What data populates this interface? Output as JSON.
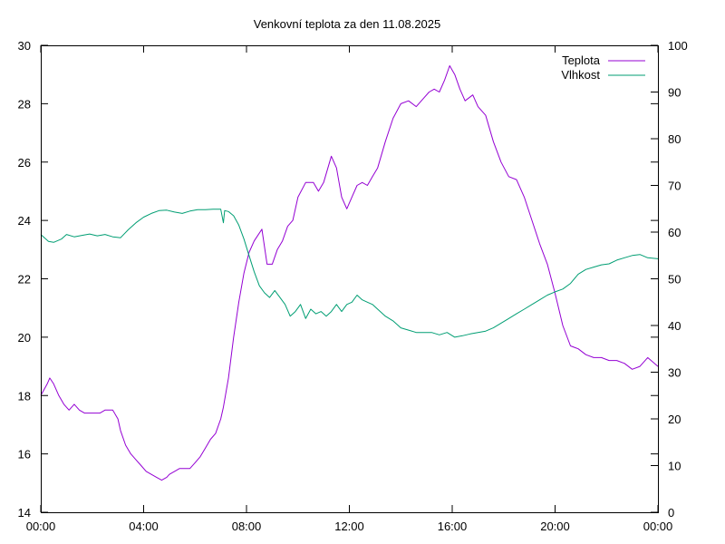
{
  "chart_data": {
    "type": "line",
    "title": "Venkovní teplota za den 11.08.2025",
    "xlabel": "",
    "ylabel": "",
    "y2label": "",
    "x_ticks": [
      "00:00",
      "04:00",
      "08:00",
      "12:00",
      "16:00",
      "20:00",
      "00:00"
    ],
    "xlim_hours": [
      0,
      24
    ],
    "ylim": [
      14,
      30
    ],
    "y_ticks": [
      14,
      16,
      18,
      20,
      22,
      24,
      26,
      28,
      30
    ],
    "y2lim": [
      0,
      100
    ],
    "y2_ticks": [
      0,
      10,
      20,
      30,
      40,
      50,
      60,
      70,
      80,
      90,
      100
    ],
    "grid": false,
    "legend_position": "top-right",
    "series": [
      {
        "name": "Teplota",
        "axis": "y",
        "color": "#9400d3",
        "x": [
          0.0,
          0.25,
          0.35,
          0.5,
          0.7,
          0.9,
          1.1,
          1.3,
          1.5,
          1.7,
          1.9,
          2.1,
          2.3,
          2.5,
          2.8,
          3.0,
          3.1,
          3.3,
          3.5,
          3.7,
          3.9,
          4.1,
          4.3,
          4.5,
          4.7,
          4.9,
          5.0,
          5.2,
          5.4,
          5.6,
          5.8,
          6.0,
          6.2,
          6.4,
          6.6,
          6.8,
          7.0,
          7.1,
          7.3,
          7.5,
          7.7,
          7.9,
          8.1,
          8.3,
          8.6,
          8.8,
          9.0,
          9.2,
          9.4,
          9.6,
          9.8,
          10.0,
          10.3,
          10.6,
          10.8,
          11.0,
          11.3,
          11.5,
          11.7,
          11.9,
          12.1,
          12.3,
          12.5,
          12.7,
          12.9,
          13.1,
          13.4,
          13.7,
          14.0,
          14.3,
          14.6,
          14.9,
          15.1,
          15.3,
          15.5,
          15.7,
          15.9,
          16.1,
          16.3,
          16.5,
          16.8,
          17.0,
          17.3,
          17.6,
          17.9,
          18.2,
          18.5,
          18.8,
          19.1,
          19.4,
          19.7,
          20.0,
          20.3,
          20.6,
          20.9,
          21.2,
          21.5,
          21.8,
          22.1,
          22.4,
          22.7,
          23.0,
          23.3,
          23.6,
          24.0
        ],
        "values": [
          18.0,
          18.4,
          18.6,
          18.4,
          18.0,
          17.7,
          17.5,
          17.7,
          17.5,
          17.4,
          17.4,
          17.4,
          17.4,
          17.5,
          17.5,
          17.2,
          16.8,
          16.3,
          16.0,
          15.8,
          15.6,
          15.4,
          15.3,
          15.2,
          15.1,
          15.2,
          15.3,
          15.4,
          15.5,
          15.5,
          15.5,
          15.7,
          15.9,
          16.2,
          16.5,
          16.7,
          17.2,
          17.6,
          18.6,
          20.0,
          21.2,
          22.2,
          22.9,
          23.3,
          23.7,
          22.5,
          22.5,
          23.0,
          23.3,
          23.8,
          24.0,
          24.8,
          25.3,
          25.3,
          25.0,
          25.3,
          26.2,
          25.8,
          24.8,
          24.4,
          24.8,
          25.2,
          25.3,
          25.2,
          25.5,
          25.8,
          26.7,
          27.5,
          28.0,
          28.1,
          27.9,
          28.2,
          28.4,
          28.5,
          28.4,
          28.8,
          29.3,
          29.0,
          28.5,
          28.1,
          28.3,
          27.9,
          27.6,
          26.7,
          26.0,
          25.5,
          25.4,
          24.8,
          24.0,
          23.2,
          22.5,
          21.5,
          20.4,
          19.7,
          19.6,
          19.4,
          19.3,
          19.3,
          19.2,
          19.2,
          19.1,
          18.9,
          19.0,
          19.3,
          19.0
        ],
        "values_scale_note": ""
      },
      {
        "name": "Vlhkost",
        "axis": "y2",
        "color": "#009e73",
        "x": [
          0.0,
          0.3,
          0.5,
          0.8,
          1.0,
          1.3,
          1.6,
          1.9,
          2.2,
          2.5,
          2.8,
          3.1,
          3.4,
          3.7,
          4.0,
          4.3,
          4.6,
          4.9,
          5.2,
          5.5,
          5.8,
          6.1,
          6.4,
          6.7,
          7.0,
          7.1,
          7.15,
          7.3,
          7.5,
          7.7,
          7.9,
          8.1,
          8.3,
          8.5,
          8.7,
          8.9,
          9.1,
          9.3,
          9.5,
          9.7,
          9.9,
          10.1,
          10.3,
          10.5,
          10.7,
          10.9,
          11.1,
          11.3,
          11.5,
          11.7,
          11.9,
          12.1,
          12.3,
          12.5,
          12.7,
          12.9,
          13.1,
          13.4,
          13.7,
          14.0,
          14.3,
          14.6,
          14.9,
          15.2,
          15.5,
          15.8,
          16.1,
          16.4,
          16.7,
          17.0,
          17.3,
          17.6,
          17.9,
          18.2,
          18.5,
          18.8,
          19.1,
          19.4,
          19.7,
          20.0,
          20.3,
          20.6,
          20.9,
          21.2,
          21.5,
          21.8,
          22.1,
          22.4,
          22.7,
          23.0,
          23.3,
          23.6,
          24.0
        ],
        "values": [
          59.5,
          58.0,
          57.8,
          58.5,
          59.5,
          59.0,
          59.3,
          59.6,
          59.2,
          59.5,
          59.0,
          58.8,
          60.5,
          62.0,
          63.2,
          64.0,
          64.6,
          64.7,
          64.3,
          64.0,
          64.5,
          64.8,
          64.8,
          64.9,
          64.9,
          62.0,
          64.6,
          64.4,
          63.5,
          61.5,
          58.5,
          55.0,
          51.5,
          48.5,
          47.0,
          46.0,
          47.5,
          46.0,
          44.5,
          42.0,
          43.0,
          44.5,
          41.5,
          43.5,
          42.5,
          43.0,
          42.0,
          43.0,
          44.5,
          43.0,
          44.5,
          45.0,
          46.5,
          45.5,
          45.0,
          44.5,
          43.5,
          42.0,
          41.0,
          39.5,
          39.0,
          38.5,
          38.5,
          38.5,
          38.0,
          38.5,
          37.5,
          37.8,
          38.2,
          38.5,
          38.8,
          39.5,
          40.5,
          41.5,
          42.5,
          43.5,
          44.5,
          45.5,
          46.5,
          47.2,
          47.8,
          49.0,
          51.0,
          52.0,
          52.5,
          53.0,
          53.2,
          54.0,
          54.5,
          55.0,
          55.2,
          54.5,
          54.3
        ]
      }
    ]
  }
}
